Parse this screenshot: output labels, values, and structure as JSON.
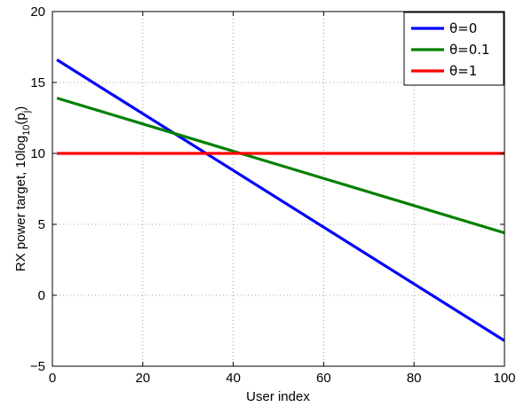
{
  "chart_data": {
    "type": "line",
    "title": "",
    "xlabel": "User index",
    "ylabel_main": "RX power target, 10log",
    "ylabel_sub": "10",
    "ylabel_tail": "(p",
    "ylabel_sub2": "j",
    "ylabel_close": ")",
    "xlim": [
      0,
      100
    ],
    "ylim": [
      -5,
      20
    ],
    "xticks": [
      0,
      20,
      40,
      60,
      80,
      100
    ],
    "xtick_labels": [
      "0",
      "20",
      "40",
      "60",
      "80",
      "100"
    ],
    "yticks": [
      -5,
      0,
      5,
      10,
      15,
      20
    ],
    "ytick_labels": [
      "−5",
      "0",
      "5",
      "10",
      "15",
      "20"
    ],
    "grid": true,
    "legend_position": "top-right",
    "series": [
      {
        "name": "θ=0",
        "color": "#0000ff",
        "x": [
          1,
          100
        ],
        "y": [
          16.6,
          -3.2
        ]
      },
      {
        "name": "θ=0.1",
        "color": "#008000",
        "x": [
          1,
          100
        ],
        "y": [
          13.9,
          4.4
        ]
      },
      {
        "name": "θ=1",
        "color": "#ff0000",
        "x": [
          1,
          100
        ],
        "y": [
          10,
          10
        ]
      }
    ]
  }
}
